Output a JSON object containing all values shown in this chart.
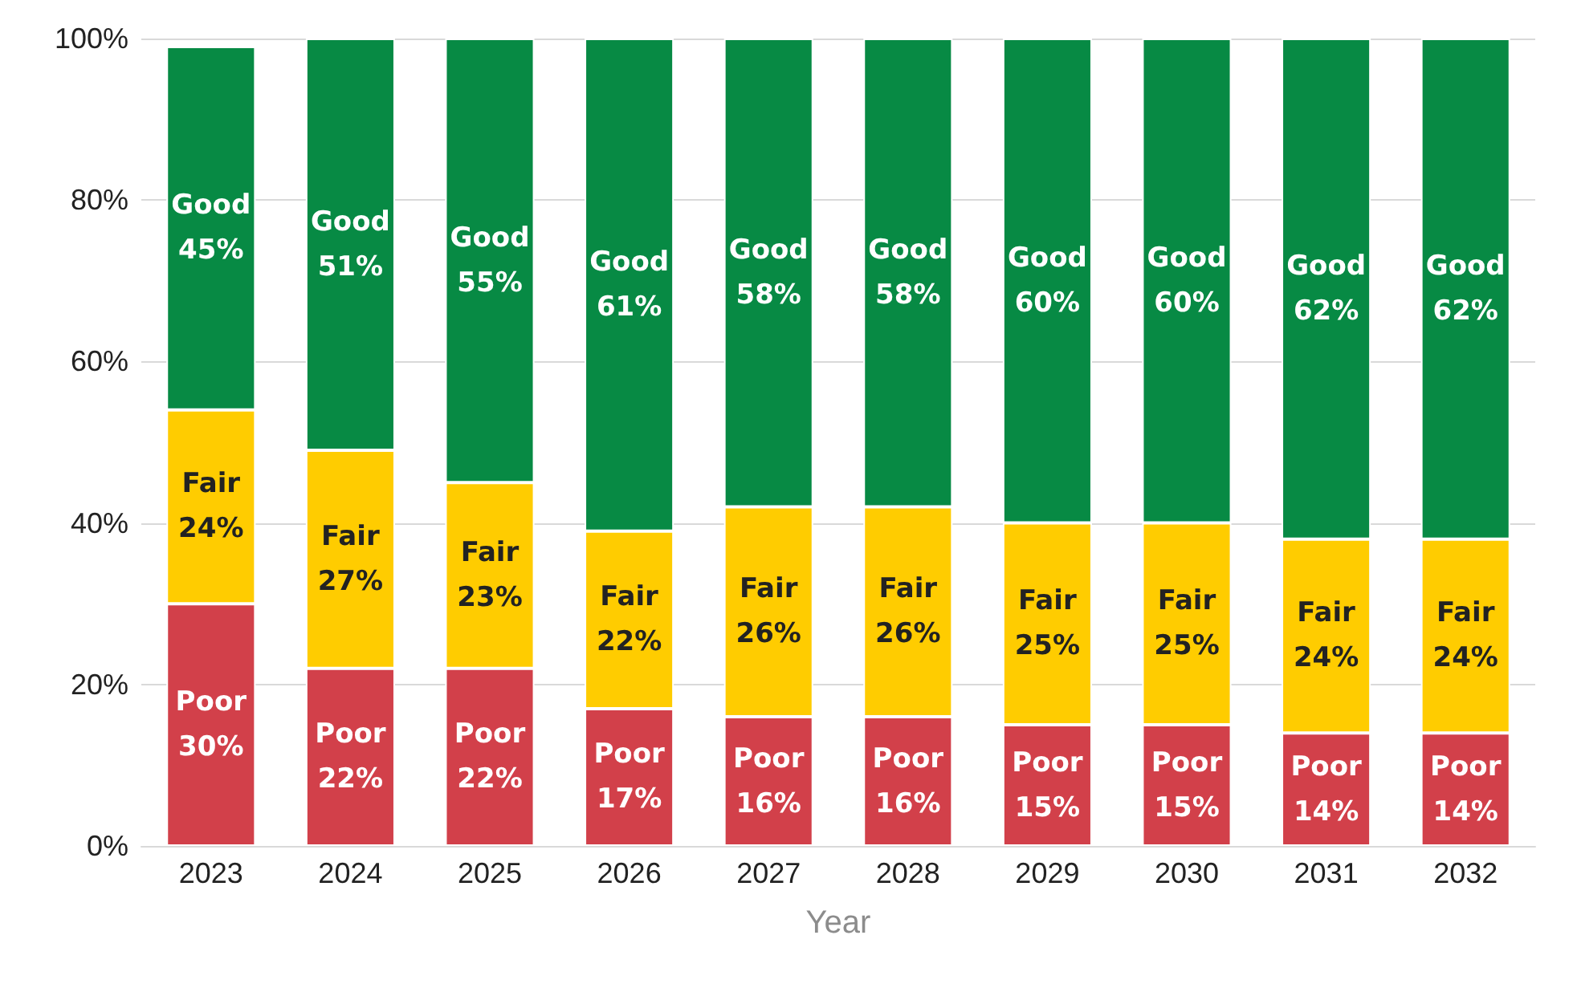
{
  "chart_data": {
    "type": "bar",
    "stacked": true,
    "xlabel": "Year",
    "categories": [
      "2023",
      "2024",
      "2025",
      "2026",
      "2027",
      "2028",
      "2029",
      "2030",
      "2031",
      "2032"
    ],
    "series": [
      {
        "name": "Poor",
        "color": "#d2404a",
        "values": [
          30,
          22,
          22,
          17,
          16,
          16,
          15,
          15,
          14,
          14
        ],
        "value_labels": [
          "30%",
          "22%",
          "22%",
          "17%",
          "16%",
          "16%",
          "15%",
          "15%",
          "14%",
          "14%"
        ]
      },
      {
        "name": "Fair",
        "color": "#ffcc00",
        "values": [
          24,
          27,
          23,
          22,
          26,
          26,
          25,
          25,
          24,
          24
        ],
        "value_labels": [
          "24%",
          "27%",
          "23%",
          "22%",
          "26%",
          "26%",
          "25%",
          "25%",
          "24%",
          "24%"
        ]
      },
      {
        "name": "Good",
        "color": "#078a44",
        "values": [
          45,
          51,
          55,
          61,
          58,
          58,
          60,
          60,
          62,
          62
        ],
        "value_labels": [
          "45%",
          "51%",
          "55%",
          "61%",
          "58%",
          "58%",
          "60%",
          "60%",
          "62%",
          "62%"
        ]
      }
    ],
    "ylim": [
      0,
      100
    ],
    "yticks": [
      {
        "value": 0,
        "label": "0%"
      },
      {
        "value": 20,
        "label": "20%"
      },
      {
        "value": 40,
        "label": "40%"
      },
      {
        "value": 60,
        "label": "60%"
      },
      {
        "value": 80,
        "label": "80%"
      },
      {
        "value": 100,
        "label": "100%"
      }
    ],
    "grid": "y",
    "legend": false
  }
}
